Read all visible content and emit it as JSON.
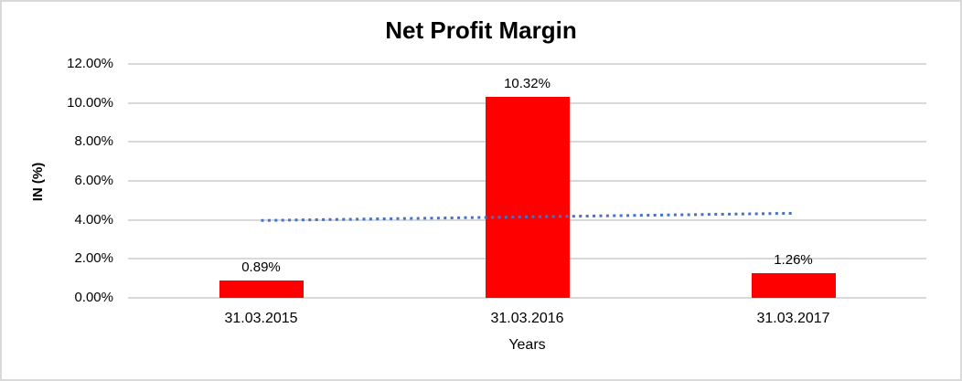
{
  "frame": {
    "background": "#ffffff",
    "border_color": "#d9d9d9"
  },
  "chart_data": {
    "type": "bar",
    "title": "Net Profit Margin",
    "categories": [
      "31.03.2015",
      "31.03.2016",
      "31.03.2017"
    ],
    "values": [
      0.89,
      10.32,
      1.26
    ],
    "data_labels": [
      "0.89%",
      "10.32%",
      "1.26%"
    ],
    "xlabel": "Years",
    "ylabel": "IN (%)",
    "ylim": [
      0,
      12
    ],
    "ytick_step": 2,
    "ytick_labels": [
      "0.00%",
      "2.00%",
      "4.00%",
      "6.00%",
      "8.00%",
      "10.00%",
      "12.00%"
    ],
    "grid": true,
    "legend_position": "none",
    "bar_color": "#ff0000",
    "gridline_color": "#d9d9d9",
    "text_color": "#000000",
    "trendline": {
      "shape": "linear",
      "line_style": "dotted",
      "color": "#4472c4",
      "start_value": 3.97,
      "end_value": 4.34
    }
  }
}
